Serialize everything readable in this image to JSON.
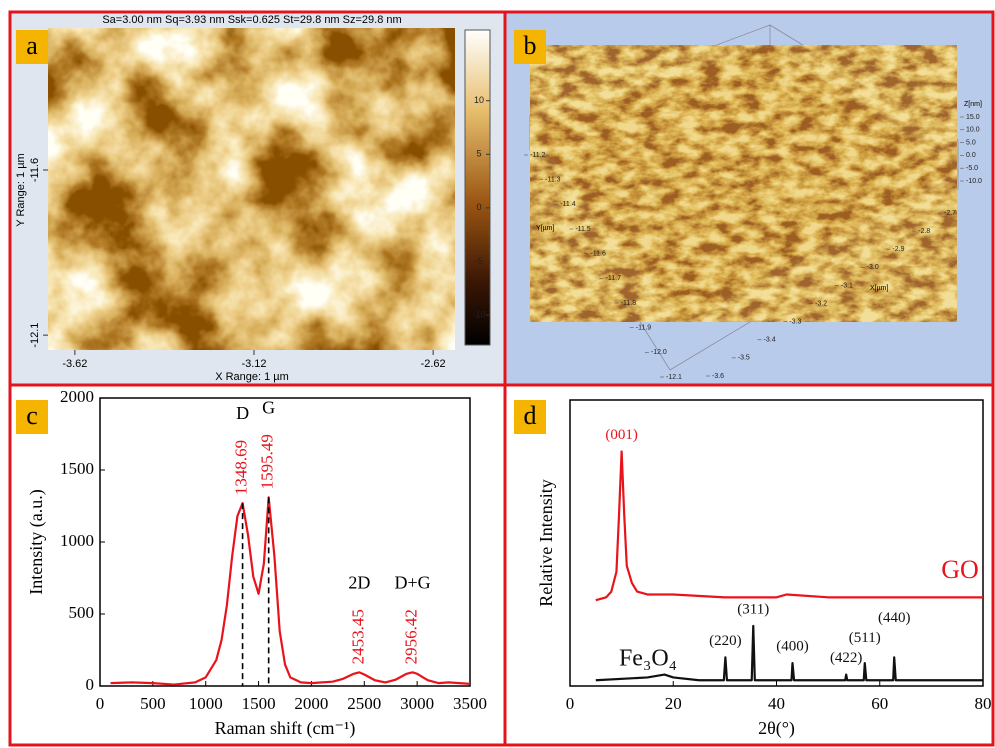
{
  "chart_data": [
    {
      "type": "afm-2d",
      "panel": "a",
      "header": "Sa=3.00 nm  Sq=3.93 nm  Ssk=0.625  St=29.8 nm  Sz=29.8 nm",
      "xlabel": "X Range: 1 µm",
      "ylabel": "Y Range: 1 µm",
      "xlim": [
        -3.695,
        -2.559
      ],
      "xticks": [
        -3.62,
        -3.12,
        -2.62
      ],
      "ylim": [
        -12.145,
        -11.17
      ],
      "yticks": [
        -11.6,
        -12.1
      ],
      "clim": [
        -12.8,
        16.6
      ],
      "cticks": [
        10,
        5,
        0,
        -5,
        -10
      ]
    },
    {
      "type": "afm-3d",
      "panel": "b",
      "xlabel": "X[µm]",
      "ylabel": "Y[µm]",
      "zlabel": "Z[nm]",
      "yticks": [
        -11.2,
        -11.3,
        -11.4,
        -11.5,
        -11.6,
        -11.7,
        -11.8,
        -11.9,
        {
          "value": -12,
          "label": "-12.0"
        },
        -12.1
      ],
      "xticks": [
        -2.7,
        -2.8,
        -2.9,
        {
          "value": -3,
          "label": "-3.0"
        },
        -3.1,
        -3.2,
        -3.3,
        -3.4,
        -3.5,
        -3.6
      ],
      "zticks": [
        {
          "value": 15,
          "label": "15.0"
        },
        {
          "value": 10,
          "label": "10.0"
        },
        {
          "value": 5,
          "label": "5.0"
        },
        {
          "value": 0,
          "label": "0.0"
        },
        {
          "value": -5,
          "label": "-5.0"
        },
        {
          "value": -10,
          "label": "-10.0"
        }
      ]
    },
    {
      "type": "line",
      "panel": "c",
      "xlabel": "Raman shift (cm⁻¹)",
      "ylabel": "Intensity (a.u.)",
      "xlim": [
        0,
        3500
      ],
      "xticks": [
        0,
        500,
        1000,
        1500,
        2000,
        2500,
        3000,
        3500
      ],
      "ylim": [
        0,
        2000
      ],
      "yticks": [
        0,
        500,
        1000,
        1500,
        2000
      ],
      "series": [
        {
          "color": "#e8141c",
          "x": [
            100,
            300,
            500,
            700,
            900,
            1000,
            1100,
            1150,
            1200,
            1250,
            1300,
            1348.69,
            1400,
            1450,
            1500,
            1550,
            1595.49,
            1650,
            1700,
            1750,
            1800,
            1900,
            2000,
            2100,
            2200,
            2300,
            2400,
            2453.45,
            2500,
            2600,
            2700,
            2800,
            2900,
            2956.42,
            3000,
            3100,
            3200,
            3300,
            3400,
            3500
          ],
          "values": [
            20,
            25,
            20,
            10,
            25,
            60,
            180,
            320,
            560,
            900,
            1180,
            1270,
            1050,
            760,
            640,
            850,
            1310,
            900,
            380,
            150,
            60,
            25,
            20,
            25,
            30,
            50,
            85,
            95,
            80,
            40,
            25,
            45,
            85,
            95,
            85,
            40,
            20,
            25,
            20,
            15
          ]
        }
      ],
      "peaks": [
        {
          "name": "D",
          "x": 1348.69,
          "y": 1270,
          "dashed": true,
          "color": "#e8141c"
        },
        {
          "name": "G",
          "x": 1595.49,
          "y": 1310,
          "dashed": true,
          "color": "#e8141c"
        },
        {
          "name": "2D",
          "x": 2453.45,
          "y": 95,
          "dashed": false,
          "color": "#e8141c"
        },
        {
          "name": "D+G",
          "x": 2956.42,
          "y": 95,
          "dashed": false,
          "color": "#e8141c"
        }
      ]
    },
    {
      "type": "line",
      "panel": "d",
      "xlabel": "2θ(°)",
      "ylabel": "Relative Intensity",
      "xlim": [
        0,
        80
      ],
      "xticks": [
        0,
        20,
        40,
        60,
        80
      ],
      "ylim": [
        0,
        100
      ],
      "series": [
        {
          "name": "GO",
          "color": "#e8141c",
          "x": [
            5,
            7,
            8,
            9,
            9.5,
            10,
            10.5,
            11,
            12,
            13,
            15,
            20,
            30,
            40,
            42,
            50,
            60,
            70,
            80
          ],
          "values": [
            30,
            31,
            33,
            40,
            60,
            82,
            60,
            42,
            36,
            33,
            32,
            32,
            31,
            31,
            32,
            31,
            31,
            31,
            31
          ]
        },
        {
          "name": "Fe₃O₄",
          "color": "#111111",
          "x": [
            5,
            15,
            18.3,
            20,
            25,
            29.8,
            30.1,
            30.4,
            35.2,
            35.5,
            35.8,
            42.9,
            43.1,
            43.4,
            53.3,
            53.5,
            53.7,
            56.9,
            57.1,
            57.4,
            62.6,
            62.8,
            63.1,
            70,
            80
          ],
          "values": [
            2,
            3,
            4,
            3,
            2,
            2,
            10,
            2,
            2,
            21,
            2,
            2,
            8,
            2,
            2,
            4,
            2,
            2,
            8,
            2,
            2,
            10,
            2,
            2,
            2
          ]
        }
      ],
      "peaks": [
        {
          "label": "(001)",
          "x": 10,
          "y": 82,
          "color": "#e8141c"
        },
        {
          "label": "(220)",
          "x": 30.1,
          "y": 10,
          "color": "#111111"
        },
        {
          "label": "(311)",
          "x": 35.5,
          "y": 21,
          "color": "#111111"
        },
        {
          "label": "(400)",
          "x": 43.1,
          "y": 8,
          "color": "#111111"
        },
        {
          "label": "(422)",
          "x": 53.5,
          "y": 4,
          "color": "#111111"
        },
        {
          "label": "(511)",
          "x": 57.1,
          "y": 8,
          "color": "#111111"
        },
        {
          "label": "(440)",
          "x": 62.8,
          "y": 10,
          "color": "#111111"
        }
      ]
    }
  ]
}
